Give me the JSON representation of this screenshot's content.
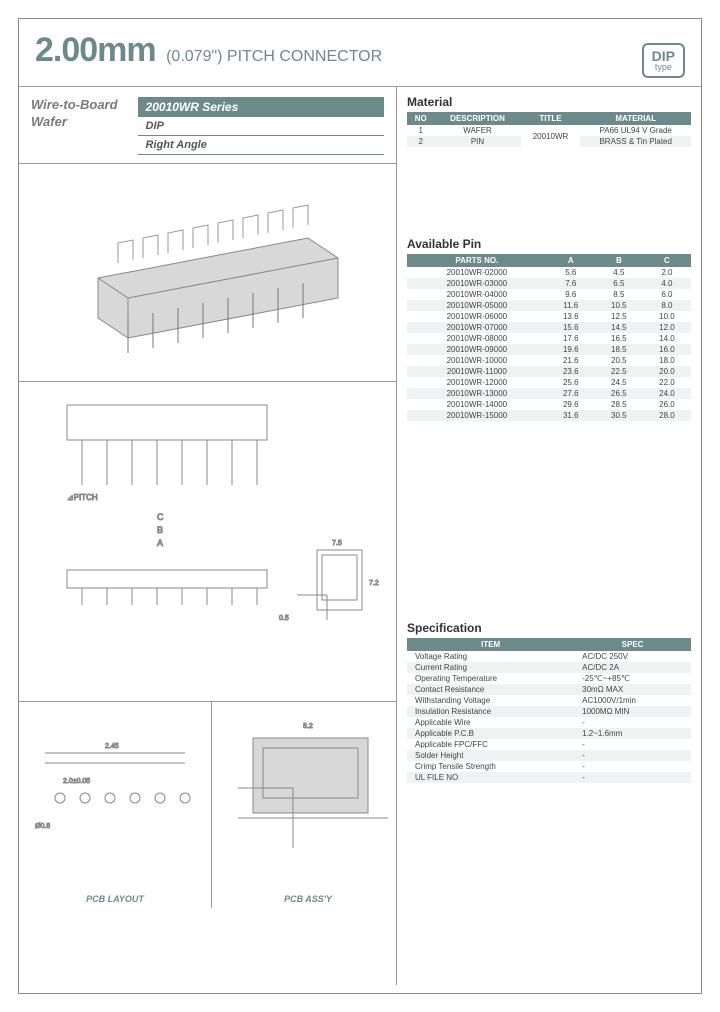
{
  "header": {
    "size": "2.00mm",
    "subtitle": "(0.079\") PITCH CONNECTOR",
    "badge_top": "DIP",
    "badge_bot": "type"
  },
  "product": {
    "name_line1": "Wire-to-Board",
    "name_line2": "Wafer",
    "series": "20010WR Series",
    "type": "DIP",
    "angle": "Right Angle"
  },
  "material": {
    "title": "Material",
    "headers": [
      "NO",
      "DESCRIPTION",
      "TITLE",
      "MATERIAL"
    ],
    "rows": [
      [
        "1",
        "WAFER",
        "20010WR",
        "PA66  UL94 V Grade"
      ],
      [
        "2",
        "PIN",
        "",
        "BRASS & Tin Plated"
      ]
    ]
  },
  "pins": {
    "title": "Available Pin",
    "headers": [
      "PARTS NO.",
      "A",
      "B",
      "C"
    ],
    "rows": [
      [
        "20010WR-02000",
        "5.6",
        "4.5",
        "2.0"
      ],
      [
        "20010WR-03000",
        "7.6",
        "6.5",
        "4.0"
      ],
      [
        "20010WR-04000",
        "9.6",
        "8.5",
        "6.0"
      ],
      [
        "20010WR-05000",
        "11.6",
        "10.5",
        "8.0"
      ],
      [
        "20010WR-06000",
        "13.6",
        "12.5",
        "10.0"
      ],
      [
        "20010WR-07000",
        "15.6",
        "14.5",
        "12.0"
      ],
      [
        "20010WR-08000",
        "17.6",
        "16.5",
        "14.0"
      ],
      [
        "20010WR-09000",
        "19.6",
        "18.5",
        "16.0"
      ],
      [
        "20010WR-10000",
        "21.6",
        "20.5",
        "18.0"
      ],
      [
        "20010WR-11000",
        "23.6",
        "22.5",
        "20.0"
      ],
      [
        "20010WR-12000",
        "25.6",
        "24.5",
        "22.0"
      ],
      [
        "20010WR-13000",
        "27.6",
        "26.5",
        "24.0"
      ],
      [
        "20010WR-14000",
        "29.6",
        "28.5",
        "26.0"
      ],
      [
        "20010WR-15000",
        "31.6",
        "30.5",
        "28.0"
      ]
    ]
  },
  "spec": {
    "title": "Specification",
    "headers": [
      "ITEM",
      "SPEC"
    ],
    "rows": [
      [
        "Voltage Rating",
        "AC/DC 250V"
      ],
      [
        "Current Rating",
        "AC/DC 2A"
      ],
      [
        "Operating Temperature",
        "-25℃~+85℃"
      ],
      [
        "Contact Resistance",
        "30mΩ MAX"
      ],
      [
        "Withstanding Voltage",
        "AC1000V/1min"
      ],
      [
        "Insulation Resistance",
        "1000MΩ MIN"
      ],
      [
        "Applicable Wire",
        "-"
      ],
      [
        "Applicable P.C.B",
        "1.2~1.6mm"
      ],
      [
        "Applicable FPC/FFC",
        "-"
      ],
      [
        "Solder Height",
        "-"
      ],
      [
        "Crimp Tensile Strength",
        "-"
      ],
      [
        "UL FILE NO",
        "-"
      ]
    ]
  },
  "captions": {
    "pcb_layout": "PCB LAYOUT",
    "pcb_assy": "PCB ASS'Y"
  },
  "colors": {
    "accent": "#6d8a8a",
    "row_even": "#eef2f2",
    "border": "#999999"
  }
}
